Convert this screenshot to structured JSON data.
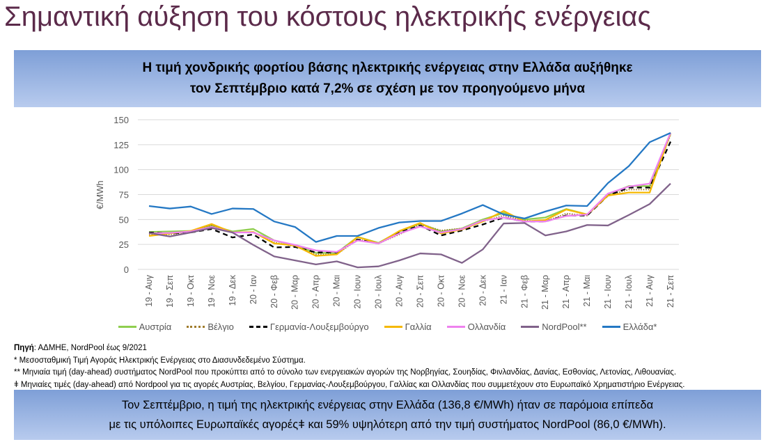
{
  "title": "Σημαντική αύξηση του κόστους ηλεκτρικής ενέργειας",
  "header": {
    "line1": "Η τιμή χονδρικής φορτίου βάσης ηλεκτρικής ενέργειας στην Ελλάδα αυξήθηκε",
    "line2": "τον Σεπτέμβριο κατά 7,2% σε σχέση με τον προηγούμενο μήνα"
  },
  "chart_data": {
    "type": "line",
    "ylabel": "€/MWh",
    "ylim": [
      0,
      150
    ],
    "yticks": [
      0,
      25,
      50,
      75,
      100,
      125,
      150
    ],
    "legend_position": "bottom",
    "grid": true,
    "categories": [
      "19 - Αυγ",
      "19 - Σεπ",
      "19 - Οκτ",
      "19 - Νοε",
      "19 - Δεκ",
      "20 - Ιαν",
      "20 - Φεβ",
      "20 - Μαρ",
      "20 - Απρ",
      "20 - Μαι",
      "20 - Ιουν",
      "20 - Ιουλ",
      "20 - Αυγ",
      "20 - Σεπ",
      "20 - Οκτ",
      "20 - Νοε",
      "20 - Δεκ",
      "21 - Ιαν",
      "21 - Φεβ",
      "21 - Μαρ",
      "21 - Απρ",
      "21 - Μαι",
      "21 - Ιουν",
      "21 - Ιουλ",
      "21 - Αυγ",
      "21 - Σεπ"
    ],
    "series": [
      {
        "name": "Αυστρία",
        "color": "#8fce4f",
        "dash": "",
        "values": [
          37.5,
          38,
          38.5,
          44,
          38,
          40.5,
          29,
          24,
          16.5,
          16.5,
          32.5,
          26.5,
          38,
          46,
          38,
          41,
          50,
          56.5,
          50,
          52,
          60.5,
          55,
          75,
          83.5,
          83.5,
          136
        ]
      },
      {
        "name": "Βέλγιο",
        "color": "#a07c2c",
        "dash": "1.5,2",
        "values": [
          35,
          35,
          37,
          44,
          37,
          37,
          27,
          23,
          15,
          15,
          30,
          26,
          35,
          45,
          39,
          41,
          48,
          54,
          49,
          48,
          56,
          54,
          74,
          80,
          80,
          135
        ]
      },
      {
        "name": "Γερμανία-Λουξεμβούργο",
        "color": "#000000",
        "dash": "7,5",
        "values": [
          37,
          36,
          37,
          40.5,
          32,
          35,
          22,
          22.5,
          17,
          17,
          30,
          26,
          37,
          44,
          34,
          39,
          45,
          52,
          48,
          48,
          54,
          54,
          74,
          82,
          82,
          128
        ]
      },
      {
        "name": "Γαλλία",
        "color": "#f5b800",
        "dash": "",
        "values": [
          33.5,
          36,
          38.5,
          45.5,
          37,
          37.5,
          26,
          24,
          13.5,
          15,
          32.5,
          26,
          38.5,
          46.5,
          36,
          40,
          48,
          58.5,
          48,
          49.5,
          60,
          55,
          74,
          77,
          77,
          137
        ]
      },
      {
        "name": "Ολλανδία",
        "color": "#ee82ee",
        "dash": "",
        "values": [
          36,
          36.5,
          38,
          42.5,
          37,
          37,
          29,
          24.5,
          19,
          17.5,
          29,
          26,
          36,
          43,
          37,
          40.5,
          49,
          52,
          48,
          48,
          53.5,
          55,
          76,
          83,
          86,
          137
        ]
      },
      {
        "name": "NordPool**",
        "color": "#80628a",
        "dash": "",
        "values": [
          36.5,
          33,
          37,
          41.5,
          37,
          24.5,
          13,
          9,
          5,
          8,
          2,
          3,
          9,
          16,
          15,
          6.5,
          20,
          46,
          46.5,
          34,
          38,
          44.5,
          44,
          54.5,
          65.5,
          86.0
        ]
      },
      {
        "name": "Ελλάδα*",
        "color": "#2478c4",
        "dash": "",
        "values": [
          63.5,
          61,
          63,
          55.5,
          61,
          60.5,
          48,
          42.5,
          27.5,
          33.5,
          33.5,
          41.5,
          47,
          48.5,
          48.5,
          56,
          64.5,
          55,
          51,
          58,
          64,
          63.5,
          86.5,
          103.5,
          127.5,
          136.8
        ]
      }
    ]
  },
  "notes": {
    "source_label": "Πηγή",
    "source_text": ": ΑΔΜΗΕ, NordPool έως 9/2021",
    "n1": "*   Μεσοσταθμική Τιμή Αγοράς Ηλεκτρικής Ενέργειας στο Διασυνδεδεμένο Σύστημα.",
    "n2": "** Μηνιαία τιμή (day-ahead) συστήματος NordPool που προκύπτει από το σύνολο των ενεργειακών αγορών της Νορβηγίας, Σουηδίας, Φινλανδίας, Δανίας, Εσθονίας, Λετονίας, Λιθουανίας.",
    "n3": "ǂ Μηνιαίες τιμές (day-ahead) από Nordpool για τις αγορές Αυστρίας, Βελγίου, Γερμανίας-Λουξεμβούργου, Γαλλίας και Ολλανδίας που συμμετέχουν στο Ευρωπαϊκό Χρηματιστήριο Ενέργειας."
  },
  "footer": {
    "line1": "Τον Σεπτέμβριο, η τιμή της ηλεκτρικής ενέργειας στην Ελλάδα (136,8 €/MWh) ήταν σε παρόμοια επίπεδα",
    "line2": "με τις υπόλοιπες Ευρωπαϊκές αγορέςǂ και 59% υψηλότερη από την τιμή συστήματος NordPool (86,0 €/MWh)."
  }
}
